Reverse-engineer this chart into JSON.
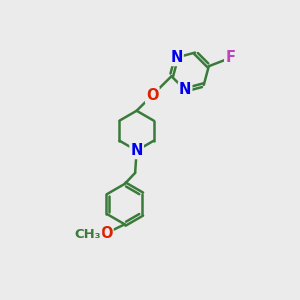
{
  "bg_color": "#ebebeb",
  "bond_color": "#3a7a3a",
  "N_color": "#0000ee",
  "O_color": "#dd2200",
  "F_color": "#bb44bb",
  "lw": 1.8,
  "dbo": 0.055,
  "fs": 10.5,
  "fig_size": [
    3.0,
    3.0
  ],
  "dpi": 100,
  "xlim": [
    0,
    10
  ],
  "ylim": [
    0,
    10
  ]
}
